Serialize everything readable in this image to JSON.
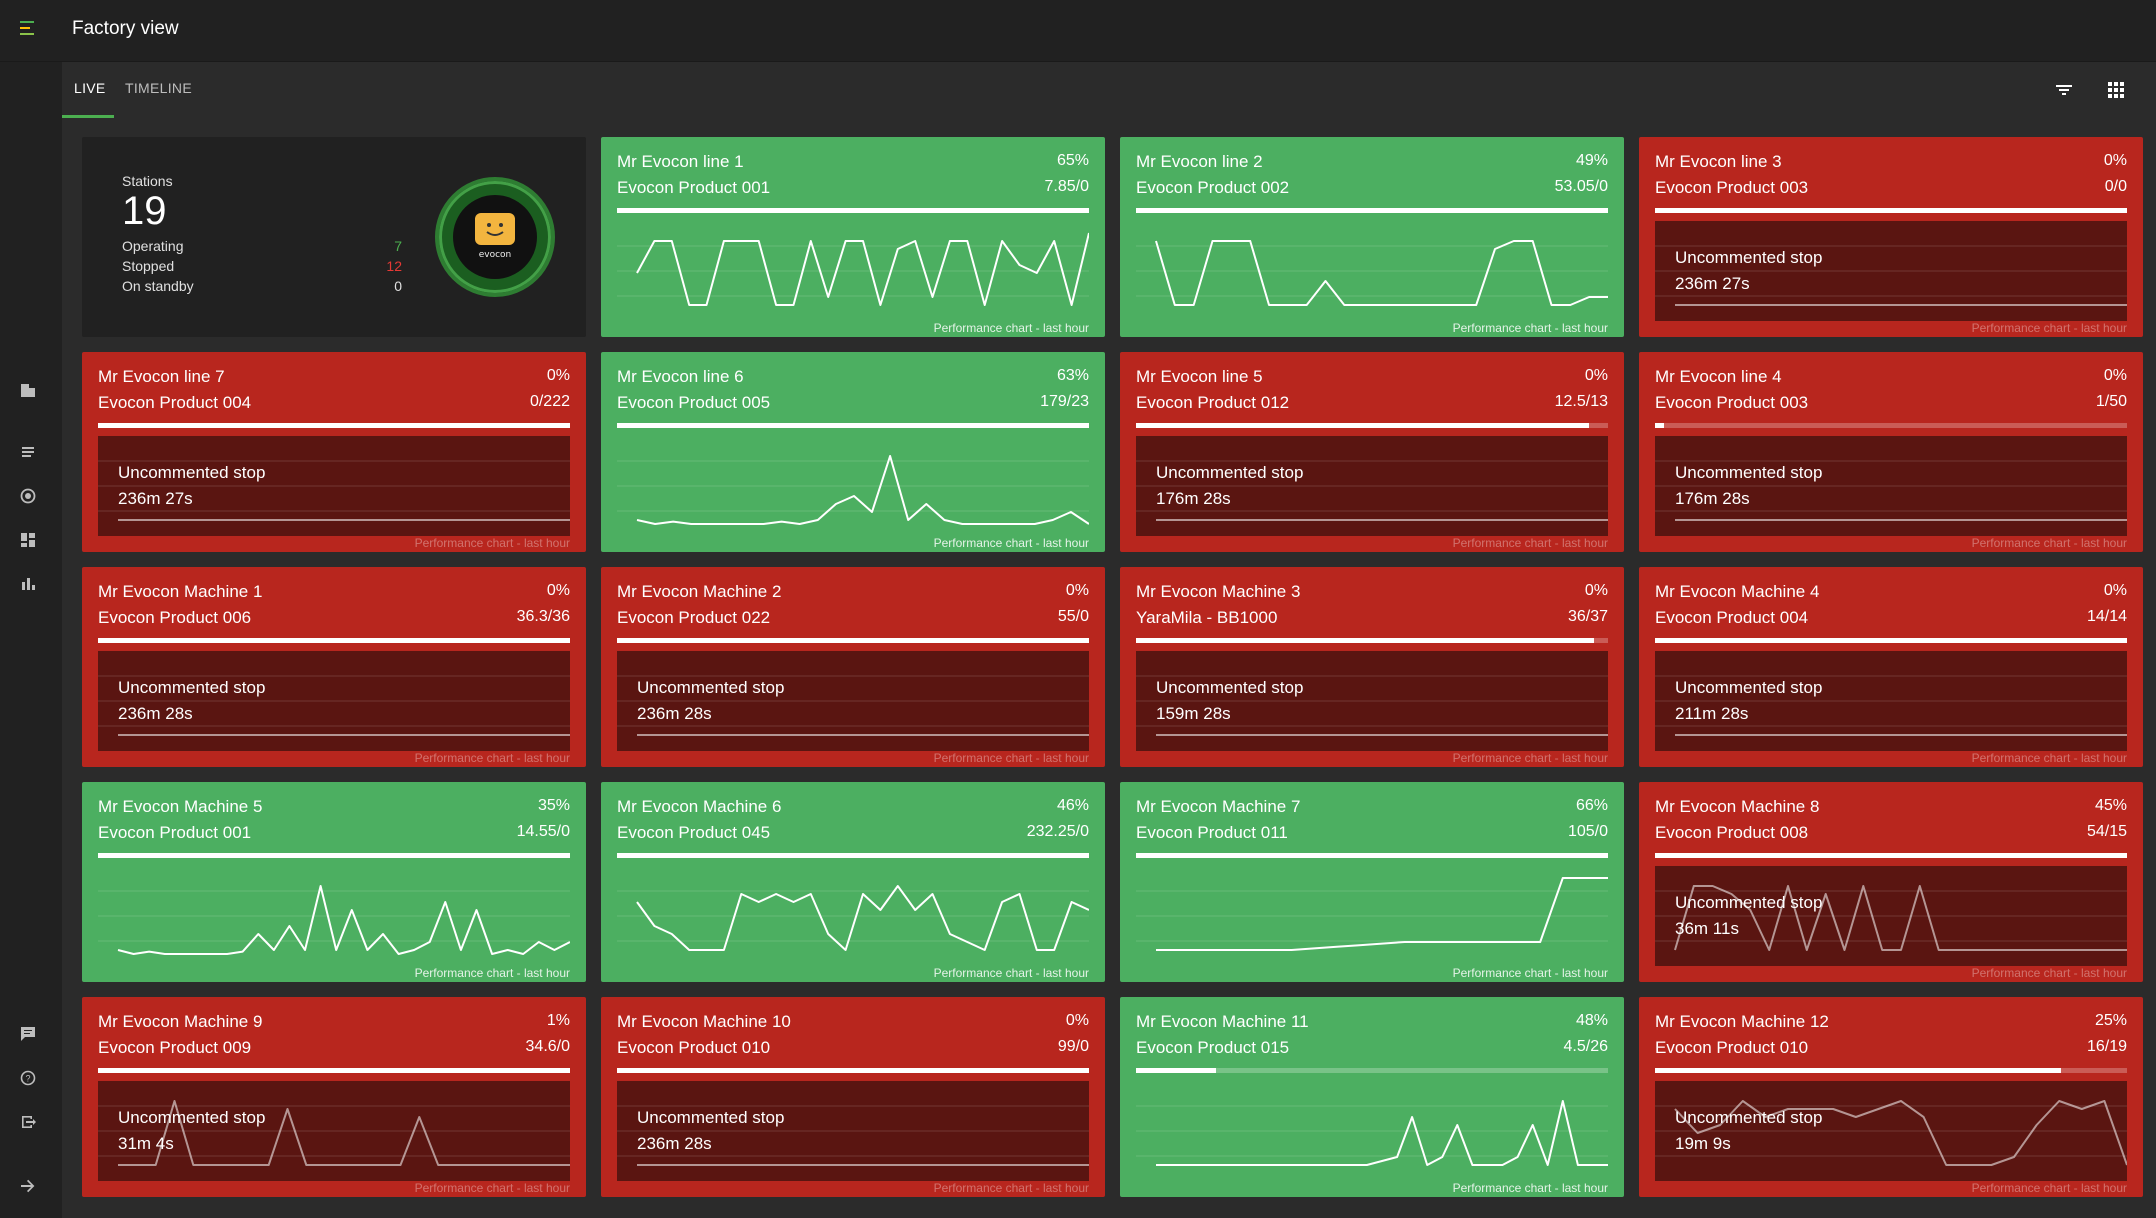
{
  "app": {
    "title": "Factory view"
  },
  "tabs": [
    {
      "label": "LIVE",
      "active": true
    },
    {
      "label": "TIMELINE",
      "active": false
    }
  ],
  "sidebar": {
    "top_icons": [
      "building-icon",
      "list-icon",
      "target-icon",
      "dashboard-icon",
      "bar-chart-icon"
    ],
    "bottom_icons": [
      "message-icon",
      "help-icon",
      "logout-icon",
      "expand-arrow-icon"
    ]
  },
  "toolbar": {
    "icons": [
      "filter-icon",
      "grid-view-icon"
    ]
  },
  "summary": {
    "stations_label": "Stations",
    "stations_count": "19",
    "operating_label": "Operating",
    "operating_value": "7",
    "stopped_label": "Stopped",
    "stopped_value": "12",
    "standby_label": "On standby",
    "standby_value": "0",
    "logo_text": "evocon"
  },
  "colors": {
    "green": "#4caf61",
    "red": "#b8261e",
    "operating": "#4caf50",
    "stopped": "#e53935"
  },
  "caption": "Performance chart - last hour",
  "cards": [
    {
      "name": "Mr Evocon line 1",
      "pct": "65%",
      "product": "Evocon Product 001",
      "count": "7.85/0",
      "status": "green",
      "progress": 1.0,
      "stop": "",
      "stop_time": "",
      "series": [
        0.5,
        0.9,
        0.9,
        0.1,
        0.1,
        0.9,
        0.9,
        0.9,
        0.1,
        0.1,
        0.9,
        0.2,
        0.9,
        0.9,
        0.1,
        0.8,
        0.9,
        0.2,
        0.9,
        0.9,
        0.1,
        0.9,
        0.6,
        0.5,
        0.9,
        0.1,
        1.0
      ]
    },
    {
      "name": "Mr Evocon line 2",
      "pct": "49%",
      "product": "Evocon Product 002",
      "count": "53.05/0",
      "status": "green",
      "progress": 1.0,
      "stop": "",
      "stop_time": "",
      "series": [
        0.9,
        0.1,
        0.1,
        0.9,
        0.9,
        0.9,
        0.1,
        0.1,
        0.1,
        0.4,
        0.1,
        0.1,
        0.1,
        0.1,
        0.1,
        0.1,
        0.1,
        0.1,
        0.8,
        0.9,
        0.9,
        0.1,
        0.1,
        0.2,
        0.2
      ]
    },
    {
      "name": "Mr Evocon line 3",
      "pct": "0%",
      "product": "Evocon Product 003",
      "count": "0/0",
      "status": "red",
      "progress": 1.0,
      "stop": "Uncommented stop",
      "stop_time": "236m 27s",
      "series": [
        0.1,
        0.1
      ]
    },
    {
      "name": "Mr Evocon line 7",
      "pct": "0%",
      "product": "Evocon Product 004",
      "count": "0/222",
      "status": "red",
      "progress": 1.0,
      "stop": "Uncommented stop",
      "stop_time": "236m 27s",
      "series": [
        0.1,
        0.1
      ]
    },
    {
      "name": "Mr Evocon line 6",
      "pct": "63%",
      "product": "Evocon Product 005",
      "count": "179/23",
      "status": "green",
      "progress": 1.0,
      "stop": "",
      "stop_time": "",
      "series": [
        0.1,
        0.05,
        0.08,
        0.05,
        0.05,
        0.05,
        0.05,
        0.05,
        0.08,
        0.05,
        0.1,
        0.3,
        0.4,
        0.2,
        0.9,
        0.1,
        0.3,
        0.1,
        0.05,
        0.05,
        0.05,
        0.05,
        0.05,
        0.1,
        0.2,
        0.05
      ]
    },
    {
      "name": "Mr Evocon line 5",
      "pct": "0%",
      "product": "Evocon Product 012",
      "count": "12.5/13",
      "status": "red",
      "progress": 0.96,
      "stop": "Uncommented stop",
      "stop_time": "176m 28s",
      "series": [
        0.1,
        0.1
      ]
    },
    {
      "name": "Mr Evocon line 4",
      "pct": "0%",
      "product": "Evocon Product 003",
      "count": "1/50",
      "status": "red",
      "progress": 0.02,
      "stop": "Uncommented stop",
      "stop_time": "176m 28s",
      "series": [
        0.1,
        0.1
      ]
    },
    {
      "name": "Mr Evocon Machine 1",
      "pct": "0%",
      "product": "Evocon Product 006",
      "count": "36.3/36",
      "status": "red",
      "progress": 1.0,
      "stop": "Uncommented stop",
      "stop_time": "236m 28s",
      "series": [
        0.1,
        0.1
      ]
    },
    {
      "name": "Mr Evocon Machine 2",
      "pct": "0%",
      "product": "Evocon Product 022",
      "count": "55/0",
      "status": "red",
      "progress": 1.0,
      "stop": "Uncommented stop",
      "stop_time": "236m 28s",
      "series": [
        0.1,
        0.1
      ]
    },
    {
      "name": "Mr Evocon Machine 3",
      "pct": "0%",
      "product": "YaraMila - BB1000",
      "count": "36/37",
      "status": "red",
      "progress": 0.97,
      "stop": "Uncommented stop",
      "stop_time": "159m 28s",
      "series": [
        0.1,
        0.1
      ]
    },
    {
      "name": "Mr Evocon Machine 4",
      "pct": "0%",
      "product": "Evocon Product 004",
      "count": "14/14",
      "status": "red",
      "progress": 1.0,
      "stop": "Uncommented stop",
      "stop_time": "211m 28s",
      "series": [
        0.1,
        0.1
      ]
    },
    {
      "name": "Mr Evocon Machine 5",
      "pct": "35%",
      "product": "Evocon Product 001",
      "count": "14.55/0",
      "status": "green",
      "progress": 1.0,
      "stop": "",
      "stop_time": "",
      "series": [
        0.1,
        0.05,
        0.08,
        0.05,
        0.05,
        0.05,
        0.05,
        0.05,
        0.08,
        0.3,
        0.1,
        0.4,
        0.1,
        0.9,
        0.1,
        0.6,
        0.1,
        0.3,
        0.05,
        0.1,
        0.2,
        0.7,
        0.1,
        0.6,
        0.05,
        0.1,
        0.05,
        0.2,
        0.1,
        0.2
      ]
    },
    {
      "name": "Mr Evocon Machine 6",
      "pct": "46%",
      "product": "Evocon Product 045",
      "count": "232.25/0",
      "status": "green",
      "progress": 1.0,
      "stop": "",
      "stop_time": "",
      "series": [
        0.7,
        0.4,
        0.3,
        0.1,
        0.1,
        0.1,
        0.8,
        0.7,
        0.8,
        0.7,
        0.8,
        0.3,
        0.1,
        0.8,
        0.6,
        0.9,
        0.6,
        0.8,
        0.3,
        0.2,
        0.1,
        0.7,
        0.8,
        0.1,
        0.1,
        0.7,
        0.6
      ]
    },
    {
      "name": "Mr Evocon Machine 7",
      "pct": "66%",
      "product": "Evocon Product 011",
      "count": "105/0",
      "status": "green",
      "progress": 1.0,
      "stop": "",
      "stop_time": "",
      "series": [
        0.1,
        0.1,
        0.1,
        0.1,
        0.1,
        0.1,
        0.1,
        0.12,
        0.14,
        0.16,
        0.18,
        0.2,
        0.2,
        0.2,
        0.2,
        0.2,
        0.2,
        0.2,
        1.0,
        1.0,
        1.0
      ]
    },
    {
      "name": "Mr Evocon Machine 8",
      "pct": "45%",
      "product": "Evocon Product 008",
      "count": "54/15",
      "status": "red",
      "progress": 1.0,
      "stop": "Uncommented stop",
      "stop_time": "36m 11s",
      "series": [
        0.1,
        0.9,
        0.9,
        0.8,
        0.6,
        0.1,
        0.9,
        0.1,
        0.8,
        0.1,
        0.9,
        0.1,
        0.1,
        0.9,
        0.1,
        0.1,
        0.1,
        0.1,
        0.1,
        0.1,
        0.1,
        0.1,
        0.1,
        0.1,
        0.1
      ]
    },
    {
      "name": "Mr Evocon Machine 9",
      "pct": "1%",
      "product": "Evocon Product 009",
      "count": "34.6/0",
      "status": "red",
      "progress": 1.0,
      "stop": "Uncommented stop",
      "stop_time": "31m 4s",
      "series": [
        0.1,
        0.1,
        0.1,
        0.9,
        0.1,
        0.1,
        0.1,
        0.1,
        0.1,
        0.8,
        0.1,
        0.1,
        0.1,
        0.1,
        0.1,
        0.1,
        0.7,
        0.1,
        0.1,
        0.1,
        0.1,
        0.1,
        0.1,
        0.1,
        0.1
      ]
    },
    {
      "name": "Mr Evocon Machine 10",
      "pct": "0%",
      "product": "Evocon Product 010",
      "count": "99/0",
      "status": "red",
      "progress": 1.0,
      "stop": "Uncommented stop",
      "stop_time": "236m 28s",
      "series": [
        0.1,
        0.1
      ]
    },
    {
      "name": "Mr Evocon Machine 11",
      "pct": "48%",
      "product": "Evocon Product 015",
      "count": "4.5/26",
      "status": "green",
      "progress": 0.17,
      "stop": "",
      "stop_time": "",
      "series": [
        0.1,
        0.1,
        0.1,
        0.1,
        0.1,
        0.1,
        0.1,
        0.1,
        0.1,
        0.1,
        0.1,
        0.1,
        0.1,
        0.1,
        0.1,
        0.15,
        0.2,
        0.7,
        0.1,
        0.2,
        0.6,
        0.1,
        0.1,
        0.1,
        0.2,
        0.6,
        0.1,
        0.9,
        0.1,
        0.1,
        0.1
      ]
    },
    {
      "name": "Mr Evocon Machine 12",
      "pct": "25%",
      "product": "Evocon Product 010",
      "count": "16/19",
      "status": "red",
      "progress": 0.86,
      "stop": "Uncommented stop",
      "stop_time": "19m 9s",
      "series": [
        0.8,
        0.5,
        0.6,
        0.9,
        0.7,
        0.8,
        0.8,
        0.8,
        0.7,
        0.8,
        0.9,
        0.7,
        0.1,
        0.1,
        0.1,
        0.2,
        0.6,
        0.9,
        0.8,
        0.9,
        0.1
      ]
    }
  ]
}
